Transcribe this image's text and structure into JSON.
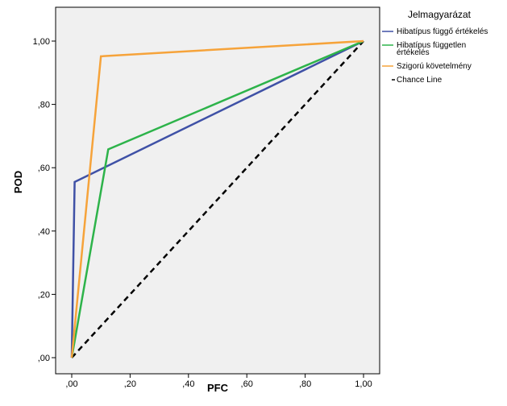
{
  "chart_data": {
    "type": "line",
    "xlabel": "PFC",
    "ylabel": "POD",
    "xlim": [
      0,
      1
    ],
    "ylim": [
      0,
      1
    ],
    "x_ticks": [
      ",00",
      ",20",
      ",40",
      ",60",
      ",80",
      "1,00"
    ],
    "y_ticks": [
      ",00",
      ",20",
      ",40",
      ",60",
      ",80",
      "1,00"
    ],
    "grid": false,
    "background": "#f0f0f0",
    "legend": {
      "title": "Jelmagyarázat",
      "placement": "right",
      "entries": [
        {
          "label_lines": [
            "Hibatípus függő értékelés"
          ],
          "color": "#3f51a6",
          "dashed": false
        },
        {
          "label_lines": [
            "Hibatípus független",
            "értékelés"
          ],
          "color": "#2db34a",
          "dashed": false
        },
        {
          "label_lines": [
            "Szigorú követelmény"
          ],
          "color": "#f6a33a",
          "dashed": false
        },
        {
          "label_lines": [
            "Chance Line"
          ],
          "color": "#000000",
          "dashed": true
        }
      ]
    },
    "series": [
      {
        "name": "Hibatípus függő értékelés",
        "color": "#3f51a6",
        "dashed": false,
        "points": [
          [
            0,
            0
          ],
          [
            0.01,
            0.555
          ],
          [
            1,
            1
          ]
        ]
      },
      {
        "name": "Hibatípus független értékelés",
        "color": "#2db34a",
        "dashed": false,
        "points": [
          [
            0,
            0
          ],
          [
            0.125,
            0.658
          ],
          [
            1,
            1
          ]
        ]
      },
      {
        "name": "Szigorú követelmény",
        "color": "#f6a33a",
        "dashed": false,
        "points": [
          [
            0,
            0
          ],
          [
            0.1,
            0.952
          ],
          [
            1,
            1
          ]
        ]
      },
      {
        "name": "Chance Line",
        "color": "#000000",
        "dashed": true,
        "points": [
          [
            0,
            0
          ],
          [
            1,
            1
          ]
        ]
      }
    ]
  }
}
